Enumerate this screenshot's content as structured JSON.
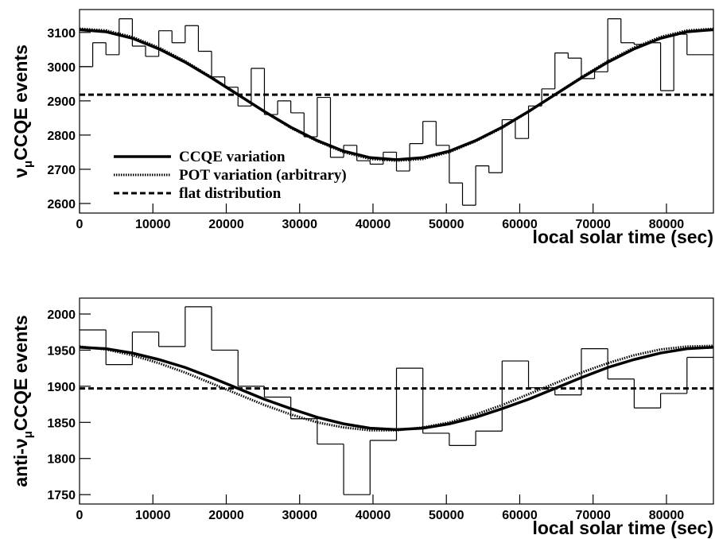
{
  "chart_data": [
    {
      "type": "histogram",
      "xlabel": "local solar time (sec)",
      "ylabel_parts": [
        "ν",
        "μ",
        "CCQE events"
      ],
      "xlim": [
        0,
        86400
      ],
      "ylim": [
        2572,
        3167
      ],
      "xticks": [
        0,
        10000,
        20000,
        30000,
        40000,
        50000,
        60000,
        70000,
        80000
      ],
      "yticks": [
        2600,
        2700,
        2800,
        2900,
        3000,
        3100
      ],
      "color": "#000000",
      "bins": [
        0,
        1800,
        3600,
        5400,
        7200,
        9000,
        10800,
        12600,
        14400,
        16200,
        18000,
        19800,
        21600,
        23400,
        25200,
        27000,
        28800,
        30600,
        32400,
        34200,
        36000,
        37800,
        39600,
        41400,
        43200,
        45000,
        46800,
        48600,
        50400,
        52200,
        54000,
        55800,
        57600,
        59400,
        61200,
        63000,
        64800,
        66600,
        68400,
        70200,
        72000,
        73800,
        75600,
        77400,
        79200,
        81000,
        82800,
        84600,
        86400
      ],
      "values": [
        3000,
        3070,
        3035,
        3140,
        3060,
        3030,
        3105,
        3070,
        3120,
        3045,
        2970,
        2940,
        2885,
        2995,
        2860,
        2900,
        2865,
        2795,
        2910,
        2735,
        2770,
        2725,
        2715,
        2750,
        2695,
        2775,
        2840,
        2770,
        2660,
        2595,
        2710,
        2690,
        2845,
        2790,
        2885,
        2935,
        3040,
        3025,
        2965,
        2985,
        3140,
        3070,
        3065,
        3070,
        2930,
        3095,
        3035,
        3035
      ],
      "legend": "left",
      "series": [
        {
          "name": "CCQE variation",
          "color": "#000000",
          "style": "solid",
          "x": [
            0,
            3600,
            7200,
            10800,
            14400,
            18000,
            21600,
            25200,
            28800,
            32400,
            36000,
            39600,
            43200,
            46800,
            50400,
            54000,
            57600,
            61200,
            64800,
            68400,
            72000,
            75600,
            79200,
            82800,
            86400
          ],
          "values": [
            3108,
            3102,
            3083,
            3052,
            3013,
            2967,
            2918,
            2869,
            2823,
            2784,
            2753,
            2734,
            2728,
            2734,
            2753,
            2784,
            2823,
            2869,
            2918,
            2967,
            3013,
            3052,
            3083,
            3102,
            3108
          ]
        },
        {
          "name": "POT variation (arbitrary)",
          "color": "#000000",
          "style": "dotted",
          "x": [
            0,
            3600,
            7200,
            10800,
            14400,
            18000,
            21600,
            25200,
            28800,
            32400,
            36000,
            39600,
            43200,
            46800,
            50400,
            54000,
            57600,
            61200,
            64800,
            68400,
            72000,
            75600,
            79200,
            82800,
            86400
          ],
          "values": [
            3111,
            3106,
            3087,
            3056,
            3016,
            2969,
            2919,
            2868,
            2821,
            2782,
            2750,
            2730,
            2725,
            2730,
            2750,
            2782,
            2821,
            2868,
            2919,
            2969,
            3016,
            3056,
            3087,
            3106,
            3111
          ]
        },
        {
          "name": "flat distribution",
          "color": "#000000",
          "style": "dashed",
          "x": [
            0,
            86400
          ],
          "values": [
            2918,
            2918
          ]
        }
      ]
    },
    {
      "type": "histogram",
      "xlabel": "local solar time (sec)",
      "ylabel_parts": [
        "anti-ν",
        "μ",
        "CCQE events"
      ],
      "xlim": [
        0,
        86400
      ],
      "ylim": [
        1737,
        2022
      ],
      "xticks": [
        0,
        10000,
        20000,
        30000,
        40000,
        50000,
        60000,
        70000,
        80000
      ],
      "yticks": [
        1750,
        1800,
        1850,
        1900,
        1950,
        2000
      ],
      "color": "#000000",
      "bins": [
        0,
        3600,
        7200,
        10800,
        14400,
        18000,
        21600,
        25200,
        28800,
        32400,
        36000,
        39600,
        43200,
        46800,
        50400,
        54000,
        57600,
        61200,
        64800,
        68400,
        72000,
        75600,
        79200,
        82800,
        86400
      ],
      "values": [
        1978,
        1930,
        1975,
        1955,
        2010,
        1950,
        1900,
        1885,
        1855,
        1820,
        1750,
        1825,
        1925,
        1835,
        1818,
        1838,
        1935,
        1898,
        1888,
        1952,
        1910,
        1870,
        1890,
        1940
      ],
      "series": [
        {
          "color": "#000000",
          "style": "solid",
          "x": [
            0,
            3600,
            7200,
            10800,
            14400,
            18000,
            21600,
            25200,
            28800,
            32400,
            36000,
            39600,
            43200,
            46800,
            50400,
            54000,
            57600,
            61200,
            64800,
            68400,
            72000,
            75600,
            79200,
            82800,
            86400
          ],
          "values": [
            1954,
            1952,
            1946,
            1937,
            1926,
            1912,
            1897,
            1882,
            1869,
            1857,
            1848,
            1842,
            1840,
            1842,
            1848,
            1857,
            1869,
            1882,
            1897,
            1912,
            1926,
            1937,
            1946,
            1952,
            1954
          ]
        },
        {
          "color": "#000000",
          "style": "dotted",
          "x": [
            0,
            3600,
            7200,
            10800,
            14400,
            18000,
            21600,
            25200,
            28800,
            32400,
            36000,
            39600,
            43200,
            46800,
            50400,
            54000,
            57600,
            61200,
            64800,
            68400,
            72000,
            75600,
            79200,
            82800,
            86400
          ],
          "values": [
            1955,
            1951,
            1943,
            1932,
            1919,
            1904,
            1889,
            1874,
            1861,
            1850,
            1843,
            1839,
            1839,
            1843,
            1850,
            1861,
            1874,
            1889,
            1904,
            1919,
            1932,
            1943,
            1951,
            1955,
            1956
          ]
        },
        {
          "color": "#000000",
          "style": "dashed",
          "x": [
            0,
            86400
          ],
          "values": [
            1897,
            1897
          ]
        }
      ]
    }
  ]
}
